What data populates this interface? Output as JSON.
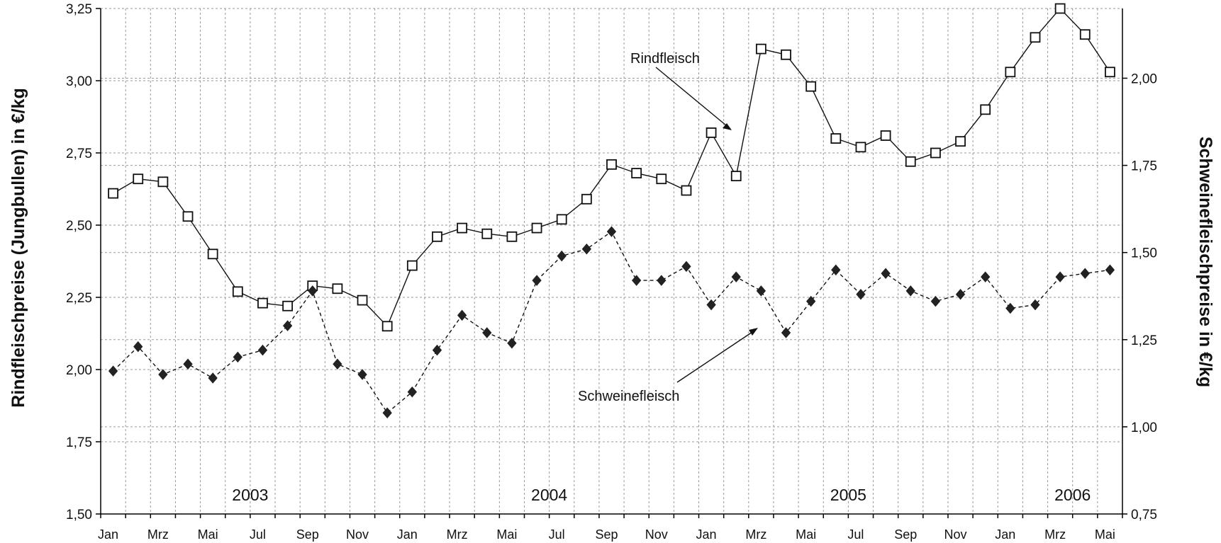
{
  "chart_data": {
    "type": "line",
    "ylabel": "Rindfleischpreise (Jungbullen) in €/kg",
    "y2label": "Schweinefleischpreise in €/kg",
    "ylim": [
      1.5,
      3.25
    ],
    "y2lim": [
      0.75,
      2.2
    ],
    "yticks": [
      "1,50",
      "1,75",
      "2,00",
      "2,25",
      "2,50",
      "2,75",
      "3,00",
      "3,25"
    ],
    "yticks_values": [
      1.5,
      1.75,
      2.0,
      2.25,
      2.5,
      2.75,
      3.0,
      3.25
    ],
    "y2ticks": [
      "0,75",
      "1,00",
      "1,25",
      "1,50",
      "1,75",
      "2,00"
    ],
    "y2ticks_values": [
      0.75,
      1.0,
      1.25,
      1.5,
      1.75,
      2.0
    ],
    "month_labels": [
      "Jan",
      "Mrz",
      "Mai",
      "Jul",
      "Sep",
      "Nov",
      "Jan",
      "Mrz",
      "Mai",
      "Jul",
      "Sep",
      "Nov",
      "Jan",
      "Mrz",
      "Mai",
      "Jul",
      "Sep",
      "Nov",
      "Jan",
      "Mrz",
      "Mai"
    ],
    "years": [
      "2003",
      "2004",
      "2005",
      "2006"
    ],
    "x": [
      "2003-01",
      "2003-02",
      "2003-03",
      "2003-04",
      "2003-05",
      "2003-06",
      "2003-07",
      "2003-08",
      "2003-09",
      "2003-10",
      "2003-11",
      "2003-12",
      "2004-01",
      "2004-02",
      "2004-03",
      "2004-04",
      "2004-05",
      "2004-06",
      "2004-07",
      "2004-08",
      "2004-09",
      "2004-10",
      "2004-11",
      "2004-12",
      "2005-01",
      "2005-02",
      "2005-03",
      "2005-04",
      "2005-05",
      "2005-06",
      "2005-07",
      "2005-08",
      "2005-09",
      "2005-10",
      "2005-11",
      "2005-12",
      "2006-01",
      "2006-02",
      "2006-03",
      "2006-04",
      "2006-05"
    ],
    "grid": true,
    "series": [
      {
        "name": "Rindfleisch",
        "axis": "left",
        "marker": "open-square",
        "values": [
          2.61,
          2.66,
          2.65,
          2.53,
          2.4,
          2.27,
          2.23,
          2.22,
          2.29,
          2.28,
          2.24,
          2.15,
          2.36,
          2.46,
          2.49,
          2.47,
          2.46,
          2.49,
          2.52,
          2.59,
          2.71,
          2.68,
          2.66,
          2.62,
          2.82,
          2.67,
          3.11,
          3.09,
          2.98,
          2.8,
          2.77,
          2.81,
          2.72,
          2.75,
          2.79,
          2.9,
          3.03,
          3.15,
          3.25,
          3.16,
          3.03
        ]
      },
      {
        "name": "Schweinefleisch",
        "axis": "right",
        "marker": "filled-diamond",
        "values": [
          1.16,
          1.23,
          1.15,
          1.18,
          1.14,
          1.2,
          1.22,
          1.29,
          1.39,
          1.18,
          1.15,
          1.04,
          1.1,
          1.22,
          1.32,
          1.27,
          1.24,
          1.42,
          1.49,
          1.51,
          1.56,
          1.42,
          1.42,
          1.46,
          1.35,
          1.43,
          1.39,
          1.27,
          1.36,
          1.45,
          1.38,
          1.44,
          1.39,
          1.36,
          1.38,
          1.43,
          1.34,
          1.35,
          1.43,
          1.44,
          1.45
        ]
      }
    ],
    "annotations": [
      "Rindfleisch",
      "Schweinefleisch"
    ]
  }
}
